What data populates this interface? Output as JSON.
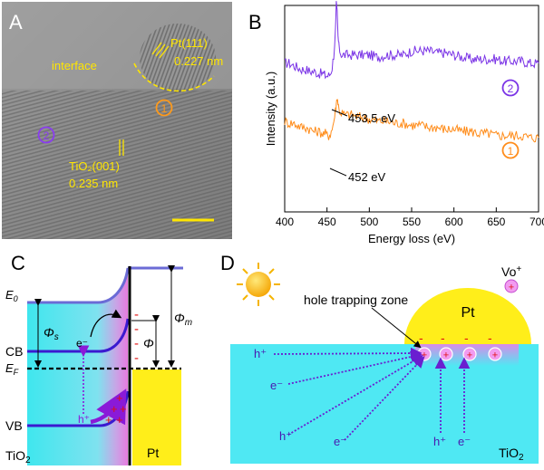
{
  "panelA": {
    "letter": "A",
    "interface_label": "interface",
    "pt_plane": "Pt(111)",
    "pt_spacing": "0.227 nm",
    "tio2_plane": "TiO₂(001)",
    "tio2_spacing": "0.235 nm",
    "marker1": "1",
    "marker2": "2"
  },
  "panelB": {
    "letter": "B",
    "ann_upper": "453.5 eV",
    "ann_lower": "452 eV",
    "marker1": "1",
    "marker2": "2"
  },
  "chart_data": {
    "type": "line",
    "xlabel": "Energy loss (eV)",
    "ylabel": "Intensity (a.u.)",
    "xlim": [
      400,
      700
    ],
    "xticks": [
      400,
      450,
      500,
      550,
      600,
      650,
      700
    ],
    "y_tick_labels": false,
    "grid": false,
    "series": [
      {
        "name": "2",
        "color": "#7a33e6",
        "x": [
          400,
          405,
          410,
          415,
          420,
          425,
          430,
          435,
          440,
          445,
          448,
          450,
          452,
          454,
          456,
          458,
          460,
          461,
          462,
          463,
          464,
          466,
          468,
          470,
          475,
          480,
          485,
          490,
          500,
          510,
          520,
          530,
          540,
          550,
          560,
          570,
          580,
          590,
          600,
          610,
          620,
          630,
          640,
          650,
          660,
          670,
          680,
          690,
          700
        ],
        "y": [
          0.72,
          0.72,
          0.71,
          0.7,
          0.69,
          0.69,
          0.68,
          0.68,
          0.67,
          0.67,
          0.66,
          0.66,
          0.66,
          0.67,
          0.7,
          0.76,
          0.88,
          1.0,
          0.96,
          0.85,
          0.8,
          0.77,
          0.76,
          0.76,
          0.76,
          0.76,
          0.76,
          0.76,
          0.76,
          0.75,
          0.76,
          0.76,
          0.76,
          0.78,
          0.78,
          0.78,
          0.77,
          0.77,
          0.76,
          0.75,
          0.74,
          0.74,
          0.74,
          0.74,
          0.73,
          0.73,
          0.73,
          0.72,
          0.72
        ]
      },
      {
        "name": "1",
        "color": "#ff8c1a",
        "x": [
          400,
          405,
          410,
          415,
          420,
          425,
          430,
          435,
          440,
          445,
          448,
          450,
          452,
          454,
          456,
          458,
          460,
          461,
          462,
          463,
          464,
          466,
          468,
          470,
          475,
          480,
          485,
          490,
          500,
          510,
          520,
          530,
          540,
          550,
          560,
          570,
          580,
          590,
          600,
          610,
          620,
          630,
          640,
          650,
          660,
          670,
          680,
          690,
          700
        ],
        "y": [
          0.44,
          0.43,
          0.43,
          0.42,
          0.41,
          0.41,
          0.4,
          0.39,
          0.39,
          0.38,
          0.38,
          0.37,
          0.37,
          0.38,
          0.4,
          0.44,
          0.49,
          0.52,
          0.56,
          0.53,
          0.5,
          0.48,
          0.48,
          0.47,
          0.47,
          0.47,
          0.46,
          0.46,
          0.45,
          0.44,
          0.44,
          0.43,
          0.43,
          0.42,
          0.42,
          0.41,
          0.41,
          0.4,
          0.4,
          0.39,
          0.39,
          0.38,
          0.38,
          0.37,
          0.37,
          0.37,
          0.37,
          0.36,
          0.36
        ]
      }
    ]
  },
  "panelC": {
    "letter": "C",
    "e0": "E",
    "e0_sub": "0",
    "phi_s": "Φ",
    "phi_s_sub": "s",
    "phi_m": "Φ",
    "phi_m_sub": "m",
    "phi": "Φ",
    "cb": "CB",
    "vb": "VB",
    "ef": "E",
    "ef_sub": "F",
    "electron": "e⁻",
    "hole": "h⁺",
    "minus": "-",
    "plus": "+",
    "tio2": "TiO",
    "tio2_sub": "2",
    "pt": "Pt"
  },
  "panelD": {
    "letter": "D",
    "hole_zone": "hole trapping zone",
    "pt": "Pt",
    "vo": "Vo",
    "vo_sup": "+",
    "tio2": "TiO",
    "tio2_sub": "2",
    "h_plus": "h⁺",
    "e_minus": "e⁻",
    "plus": "+",
    "minus": "-",
    "sun_icon": "sun-icon"
  }
}
